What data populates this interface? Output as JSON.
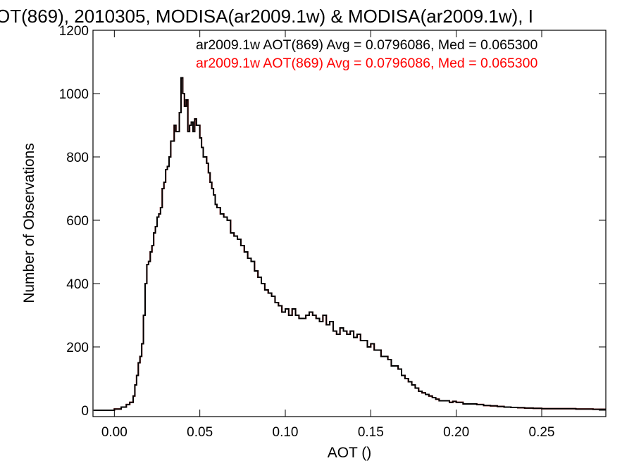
{
  "chart_data": {
    "type": "line",
    "title": "OT(869), 2010305, MODISA(ar2009.1w) & MODISA(ar2009.1w), I",
    "xlabel": "AOT ()",
    "ylabel": "Number of Observations",
    "xlim": [
      -0.0125,
      0.2875
    ],
    "ylim": [
      -20,
      1200
    ],
    "xticks": [
      0.0,
      0.05,
      0.1,
      0.15,
      0.2,
      0.25
    ],
    "xtick_labels": [
      "0.00",
      "0.05",
      "0.10",
      "0.15",
      "0.20",
      "0.25"
    ],
    "yticks": [
      0,
      200,
      400,
      600,
      800,
      1000,
      1200
    ],
    "ytick_labels": [
      "0",
      "200",
      "400",
      "600",
      "800",
      "1000",
      "1200"
    ],
    "grid": false,
    "legend_position": "top-right",
    "annotations": [
      {
        "text": "ar2009.1w AOT(869) Avg = 0.0796086, Med = 0.065300",
        "color": "#000000"
      },
      {
        "text": "ar2009.1w AOT(869) Avg = 0.0796086, Med = 0.065300",
        "color": "#ff0000"
      }
    ],
    "series": [
      {
        "color": "#ff0000",
        "step": true,
        "x": [
          -0.012,
          -0.008,
          -0.004,
          0.0,
          0.004,
          0.007,
          0.009,
          0.011,
          0.012,
          0.013,
          0.014,
          0.015,
          0.016,
          0.017,
          0.018,
          0.019,
          0.02,
          0.021,
          0.022,
          0.023,
          0.024,
          0.025,
          0.026,
          0.027,
          0.028,
          0.029,
          0.03,
          0.031,
          0.032,
          0.033,
          0.034,
          0.035,
          0.036,
          0.037,
          0.038,
          0.039,
          0.04,
          0.041,
          0.042,
          0.043,
          0.044,
          0.045,
          0.046,
          0.047,
          0.048,
          0.049,
          0.05,
          0.051,
          0.052,
          0.053,
          0.054,
          0.055,
          0.056,
          0.057,
          0.058,
          0.059,
          0.06,
          0.062,
          0.064,
          0.066,
          0.068,
          0.07,
          0.072,
          0.074,
          0.076,
          0.078,
          0.08,
          0.082,
          0.084,
          0.086,
          0.088,
          0.09,
          0.092,
          0.094,
          0.096,
          0.098,
          0.1,
          0.102,
          0.104,
          0.106,
          0.108,
          0.11,
          0.112,
          0.114,
          0.116,
          0.118,
          0.12,
          0.122,
          0.124,
          0.126,
          0.128,
          0.13,
          0.132,
          0.134,
          0.136,
          0.138,
          0.14,
          0.142,
          0.144,
          0.146,
          0.148,
          0.15,
          0.152,
          0.154,
          0.156,
          0.158,
          0.16,
          0.162,
          0.164,
          0.166,
          0.168,
          0.17,
          0.172,
          0.174,
          0.176,
          0.178,
          0.18,
          0.182,
          0.184,
          0.186,
          0.188,
          0.19,
          0.192,
          0.194,
          0.196,
          0.198,
          0.2,
          0.204,
          0.208,
          0.212,
          0.216,
          0.22,
          0.224,
          0.228,
          0.232,
          0.236,
          0.24,
          0.245,
          0.25,
          0.26,
          0.27,
          0.28,
          0.285
        ],
        "y": [
          0,
          0,
          0,
          4,
          10,
          18,
          25,
          45,
          80,
          110,
          150,
          170,
          210,
          300,
          400,
          460,
          470,
          500,
          520,
          560,
          580,
          610,
          620,
          640,
          700,
          720,
          760,
          770,
          800,
          850,
          850,
          900,
          880,
          880,
          940,
          1050,
          1000,
          960,
          980,
          880,
          900,
          910,
          880,
          920,
          900,
          900,
          860,
          830,
          800,
          800,
          780,
          750,
          720,
          700,
          680,
          650,
          640,
          620,
          610,
          600,
          560,
          550,
          540,
          520,
          500,
          480,
          470,
          440,
          420,
          400,
          380,
          370,
          360,
          340,
          330,
          310,
          320,
          300,
          320,
          300,
          290,
          290,
          300,
          310,
          300,
          290,
          280,
          300,
          270,
          280,
          250,
          240,
          260,
          250,
          240,
          250,
          230,
          240,
          220,
          220,
          200,
          210,
          190,
          190,
          170,
          170,
          160,
          140,
          140,
          130,
          110,
          100,
          90,
          80,
          70,
          60,
          55,
          50,
          45,
          40,
          35,
          30,
          30,
          30,
          25,
          28,
          25,
          20,
          20,
          18,
          15,
          14,
          12,
          10,
          9,
          8,
          7,
          6,
          5,
          5,
          4,
          3,
          3
        ]
      },
      {
        "color": "#000000",
        "step": true,
        "x": [
          -0.012,
          -0.008,
          -0.004,
          0.0,
          0.004,
          0.007,
          0.009,
          0.011,
          0.012,
          0.013,
          0.014,
          0.015,
          0.016,
          0.017,
          0.018,
          0.019,
          0.02,
          0.021,
          0.022,
          0.023,
          0.024,
          0.025,
          0.026,
          0.027,
          0.028,
          0.029,
          0.03,
          0.031,
          0.032,
          0.033,
          0.034,
          0.035,
          0.036,
          0.037,
          0.038,
          0.039,
          0.04,
          0.041,
          0.042,
          0.043,
          0.044,
          0.045,
          0.046,
          0.047,
          0.048,
          0.049,
          0.05,
          0.051,
          0.052,
          0.053,
          0.054,
          0.055,
          0.056,
          0.057,
          0.058,
          0.059,
          0.06,
          0.062,
          0.064,
          0.066,
          0.068,
          0.07,
          0.072,
          0.074,
          0.076,
          0.078,
          0.08,
          0.082,
          0.084,
          0.086,
          0.088,
          0.09,
          0.092,
          0.094,
          0.096,
          0.098,
          0.1,
          0.102,
          0.104,
          0.106,
          0.108,
          0.11,
          0.112,
          0.114,
          0.116,
          0.118,
          0.12,
          0.122,
          0.124,
          0.126,
          0.128,
          0.13,
          0.132,
          0.134,
          0.136,
          0.138,
          0.14,
          0.142,
          0.144,
          0.146,
          0.148,
          0.15,
          0.152,
          0.154,
          0.156,
          0.158,
          0.16,
          0.162,
          0.164,
          0.166,
          0.168,
          0.17,
          0.172,
          0.174,
          0.176,
          0.178,
          0.18,
          0.182,
          0.184,
          0.186,
          0.188,
          0.19,
          0.192,
          0.194,
          0.196,
          0.198,
          0.2,
          0.204,
          0.208,
          0.212,
          0.216,
          0.22,
          0.224,
          0.228,
          0.232,
          0.236,
          0.24,
          0.245,
          0.25,
          0.26,
          0.27,
          0.28,
          0.285
        ],
        "y": [
          0,
          0,
          0,
          4,
          10,
          18,
          25,
          45,
          80,
          110,
          150,
          170,
          210,
          300,
          400,
          460,
          470,
          500,
          520,
          560,
          580,
          610,
          620,
          640,
          700,
          720,
          760,
          770,
          800,
          850,
          850,
          900,
          880,
          880,
          940,
          1050,
          1000,
          960,
          980,
          880,
          900,
          910,
          880,
          920,
          900,
          900,
          860,
          830,
          800,
          800,
          780,
          750,
          720,
          700,
          680,
          650,
          640,
          620,
          610,
          600,
          560,
          550,
          540,
          520,
          500,
          480,
          470,
          440,
          420,
          400,
          380,
          370,
          360,
          340,
          330,
          310,
          320,
          300,
          320,
          300,
          290,
          290,
          300,
          310,
          300,
          290,
          280,
          300,
          270,
          280,
          250,
          240,
          260,
          250,
          240,
          250,
          230,
          240,
          220,
          220,
          200,
          210,
          190,
          190,
          170,
          170,
          160,
          140,
          140,
          130,
          110,
          100,
          90,
          80,
          70,
          60,
          55,
          50,
          45,
          40,
          35,
          30,
          30,
          30,
          25,
          28,
          25,
          20,
          20,
          18,
          15,
          14,
          12,
          10,
          9,
          8,
          7,
          6,
          5,
          5,
          4,
          3,
          3
        ]
      }
    ]
  }
}
